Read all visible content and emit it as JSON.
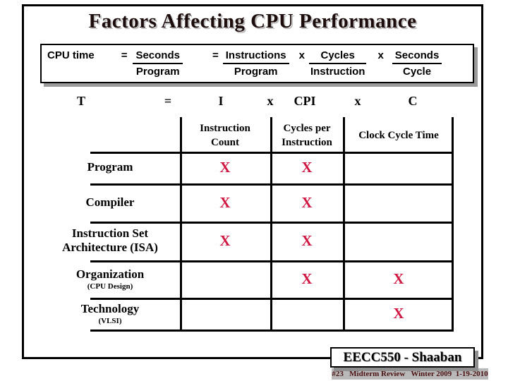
{
  "title": "Factors Affecting CPU Performance",
  "formula": {
    "lhs": "CPU time",
    "eq1": "=",
    "frac1": {
      "num": "Seconds",
      "den": "Program"
    },
    "eq2": "=",
    "frac2": {
      "num": "Instructions",
      "den": "Program"
    },
    "times1": "x",
    "frac3": {
      "num": "Cycles",
      "den": "Instruction"
    },
    "times2": "x",
    "frac4": {
      "num": "Seconds",
      "den": "Cycle"
    }
  },
  "symbol_row": {
    "t": "T",
    "eq": "=",
    "i": "I",
    "x1": "x",
    "cpi": "CPI",
    "x2": "x",
    "c": "C"
  },
  "table": {
    "columns": [
      "Instruction Count",
      "Cycles per Instruction",
      "Clock Cycle Time"
    ],
    "mark": "X",
    "rows": [
      {
        "label": "Program",
        "sub": "",
        "marks": [
          true,
          true,
          false
        ]
      },
      {
        "label": "Compiler",
        "sub": "",
        "marks": [
          true,
          true,
          false
        ]
      },
      {
        "label": "Instruction Set Architecture (ISA)",
        "sub": "",
        "marks": [
          true,
          true,
          false
        ]
      },
      {
        "label": "Organization",
        "sub": "(CPU Design)",
        "marks": [
          false,
          true,
          true
        ]
      },
      {
        "label": "Technology",
        "sub": "(VLSI)",
        "marks": [
          false,
          false,
          true
        ]
      }
    ]
  },
  "footer": {
    "course": "EECC550 - Shaaban",
    "detail": "#23   Midterm Review   Winter 2009  1-19-2010"
  },
  "colors": {
    "mark": "#d01540",
    "footer_detail": "#4a0f0f",
    "title": "#1d0c0c"
  }
}
